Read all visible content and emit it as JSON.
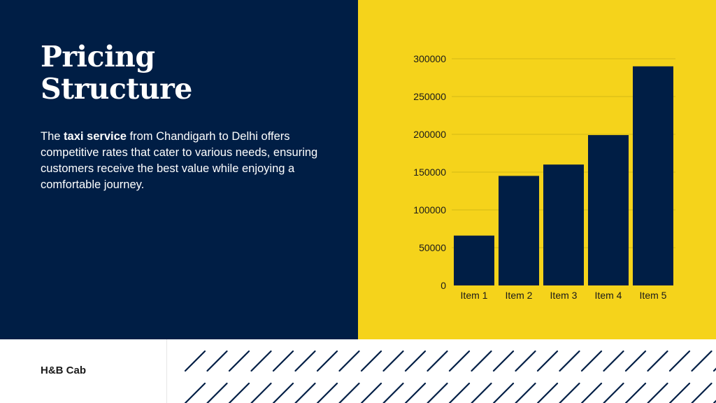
{
  "slide": {
    "title_line1": "Pricing",
    "title_line2": "Structure",
    "body": {
      "before": "The ",
      "bold": "taxi service",
      "after": " from Chandigarh to Delhi offers competitive rates that cater to various needs, ensuring customers receive the best value while enjoying a comfortable journey."
    },
    "brand": "H&B Cab"
  },
  "colors": {
    "navy": "#001E45",
    "yellow": "#F5D31B",
    "bar": "#001E45",
    "gridline": "#c9b215"
  },
  "chart_data": {
    "type": "bar",
    "categories": [
      "Item 1",
      "Item 2",
      "Item 3",
      "Item 4",
      "Item 5"
    ],
    "values": [
      66000,
      145000,
      160000,
      199000,
      290000
    ],
    "title": "",
    "xlabel": "",
    "ylabel": "",
    "ylim": [
      0,
      300000
    ],
    "yticks": [
      0,
      50000,
      100000,
      150000,
      200000,
      250000,
      300000
    ],
    "ytick_labels": [
      "0",
      "50000",
      "100000",
      "150000",
      "200000",
      "250000",
      "300000"
    ],
    "grid": true,
    "legend": "none"
  }
}
